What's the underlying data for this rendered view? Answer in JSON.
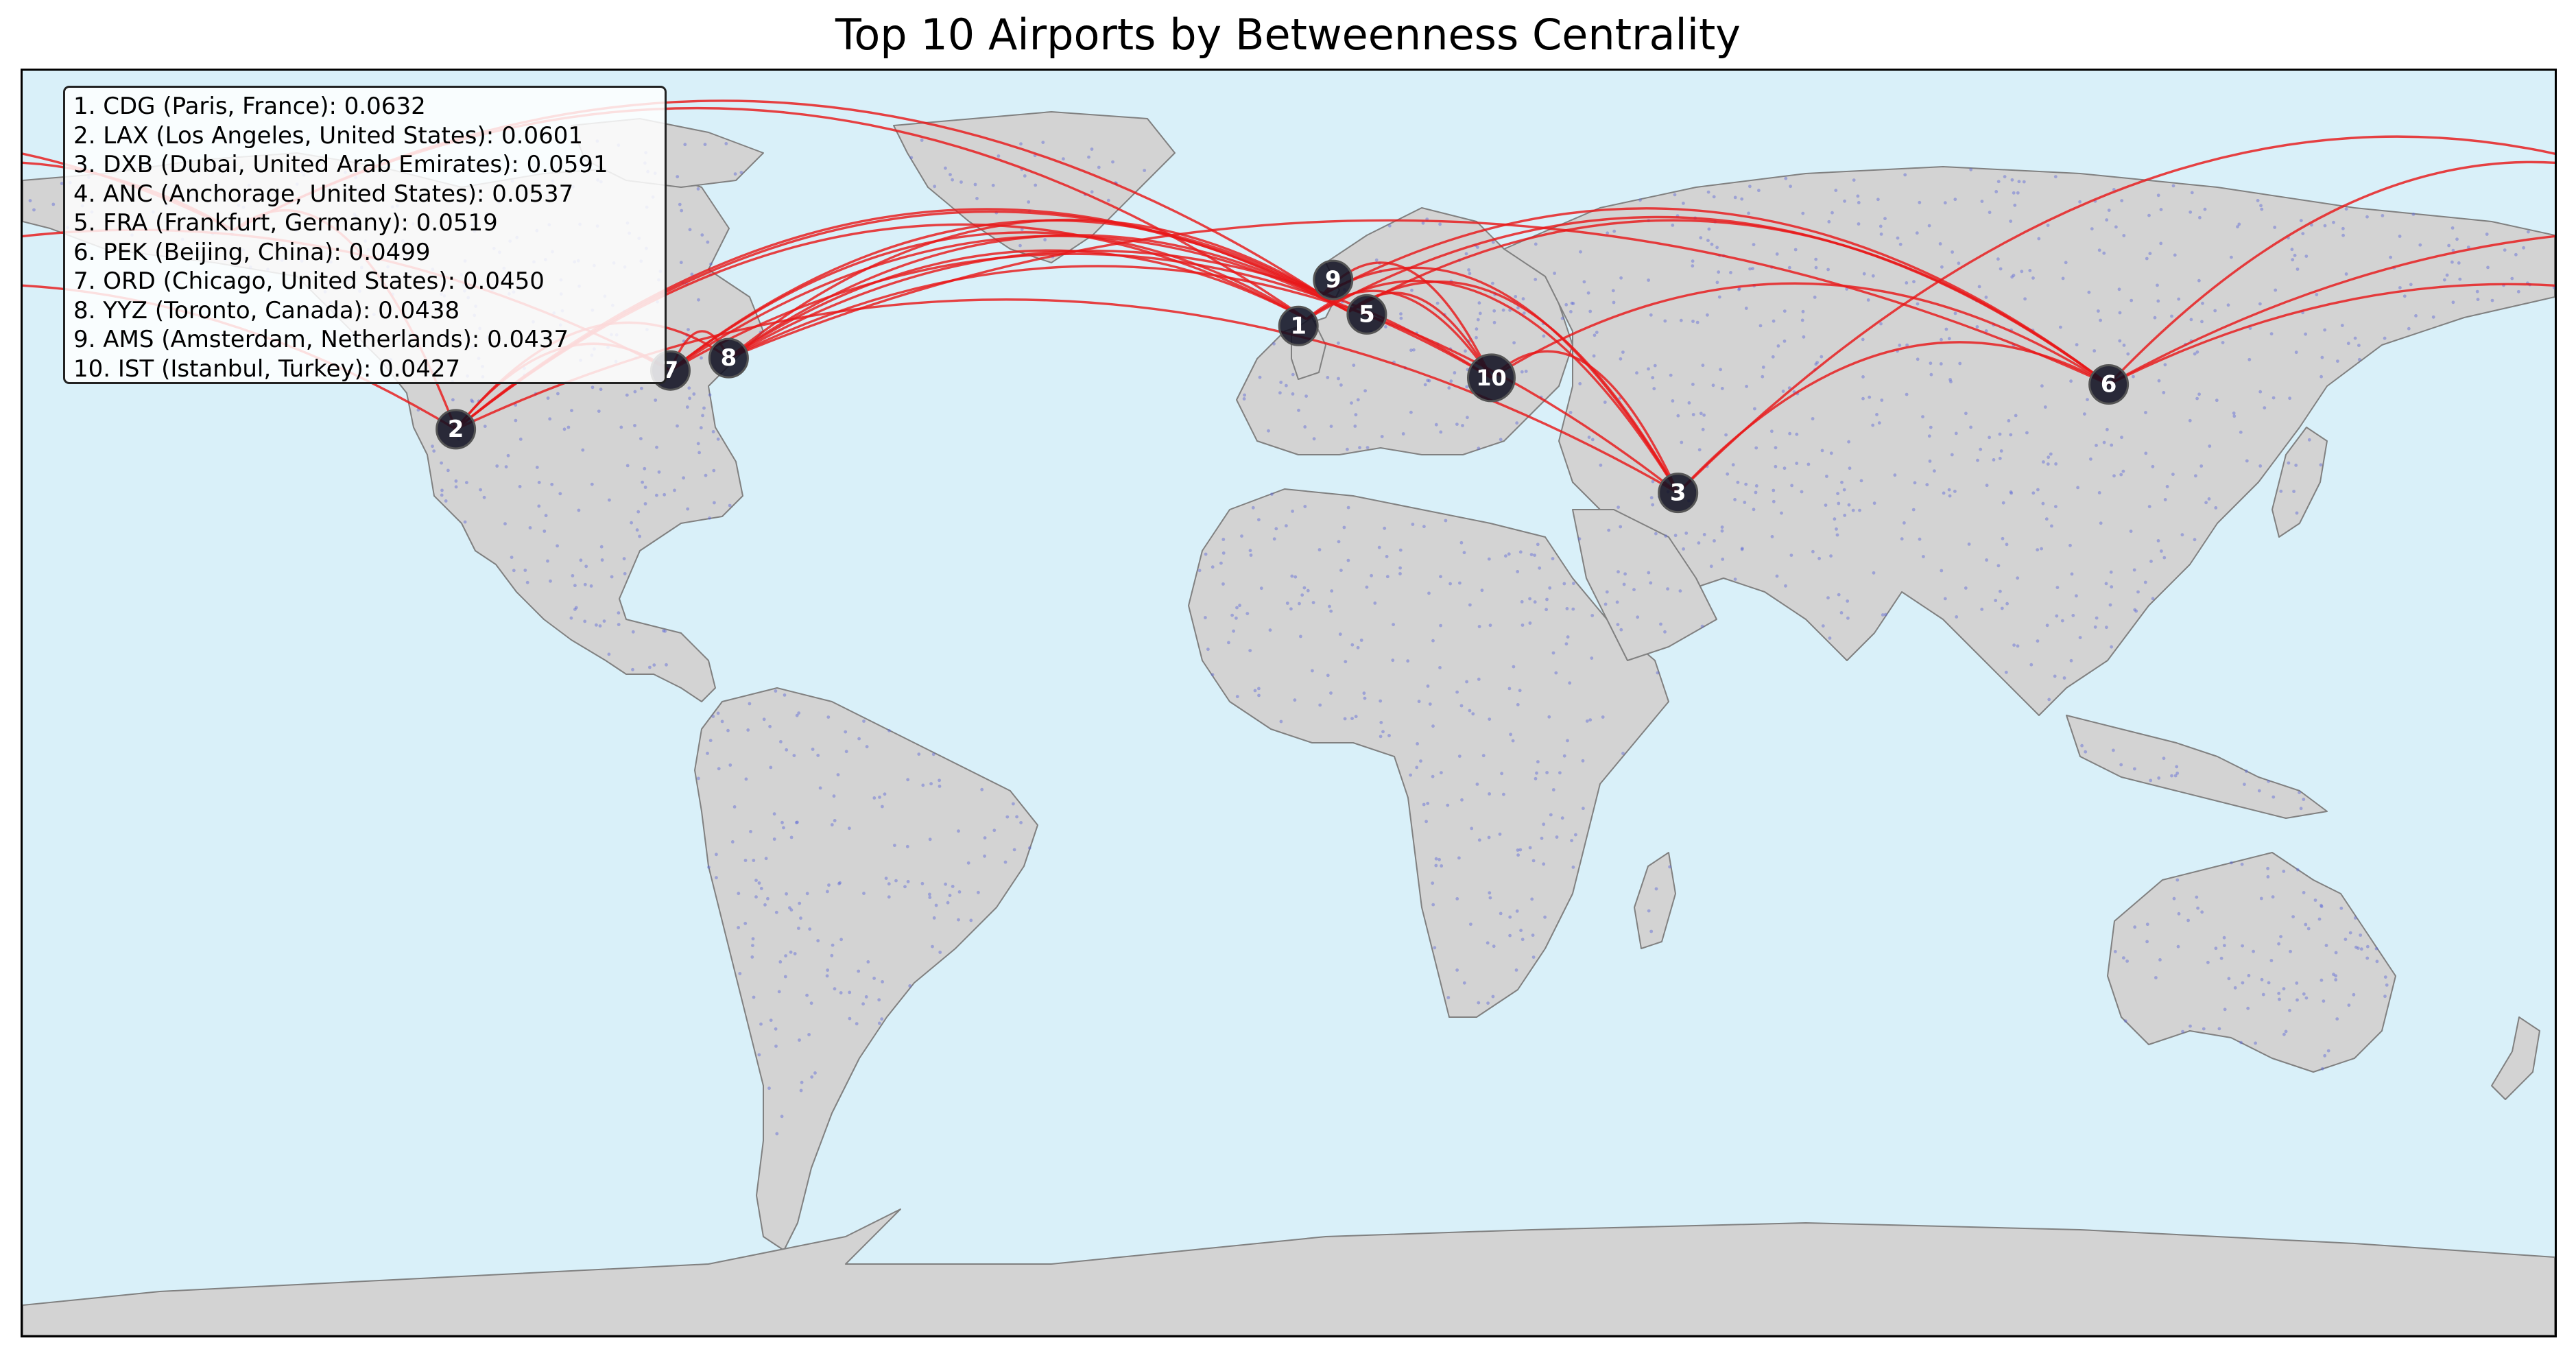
{
  "title": "Top 10 Airports by Betweenness Centrality",
  "colors": {
    "ocean": "#d9f0f9",
    "land": "#d3d3d3",
    "border": "#808080",
    "route": "#e8191a",
    "hub_fill": "#111122",
    "airport_dot": "#5a67d8"
  },
  "airports": [
    {
      "rank": 1,
      "code": "CDG",
      "city": "Paris",
      "country": "France",
      "score": "0.0632",
      "lon": 2.55,
      "lat": 49.01
    },
    {
      "rank": 2,
      "code": "LAX",
      "city": "Los Angeles",
      "country": "United States",
      "score": "0.0601",
      "lon": -118.41,
      "lat": 33.94
    },
    {
      "rank": 3,
      "code": "DXB",
      "city": "Dubai",
      "country": "United Arab Emirates",
      "score": "0.0591",
      "lon": 55.36,
      "lat": 25.25
    },
    {
      "rank": 4,
      "code": "ANC",
      "city": "Anchorage",
      "country": "United States",
      "score": "0.0537",
      "lon": -149.99,
      "lat": 61.17
    },
    {
      "rank": 5,
      "code": "FRA",
      "city": "Frankfurt",
      "country": "Germany",
      "score": "0.0519",
      "lon": 8.57,
      "lat": 50.03
    },
    {
      "rank": 6,
      "code": "PEK",
      "city": "Beijing",
      "country": "China",
      "score": "0.0499",
      "lon": 116.58,
      "lat": 40.08
    },
    {
      "rank": 7,
      "code": "ORD",
      "city": "Chicago",
      "country": "United States",
      "score": "0.0450",
      "lon": -87.9,
      "lat": 41.98
    },
    {
      "rank": 8,
      "code": "YYZ",
      "city": "Toronto",
      "country": "Canada",
      "score": "0.0438",
      "lon": -79.63,
      "lat": 43.68
    },
    {
      "rank": 9,
      "code": "AMS",
      "city": "Amsterdam",
      "country": "Netherlands",
      "score": "0.0437",
      "lon": 4.76,
      "lat": 52.31
    },
    {
      "rank": 10,
      "code": "IST",
      "city": "Istanbul",
      "country": "Turkey",
      "score": "0.0427",
      "lon": 28.81,
      "lat": 40.98
    }
  ],
  "legend": {
    "lines": [
      "1. CDG (Paris, France): 0.0632",
      "2. LAX (Los Angeles, United States): 0.0601",
      "3. DXB (Dubai, United Arab Emirates): 0.0591",
      "4. ANC (Anchorage, United States): 0.0537",
      "5. FRA (Frankfurt, Germany): 0.0519",
      "6. PEK (Beijing, China): 0.0499",
      "7. ORD (Chicago, United States): 0.0450",
      "8. YYZ (Toronto, Canada): 0.0438",
      "9. AMS (Amsterdam, Netherlands): 0.0437",
      "10. IST (Istanbul, Turkey): 0.0427"
    ]
  },
  "routes": [
    [
      2,
      7
    ],
    [
      2,
      8
    ],
    [
      2,
      1
    ],
    [
      2,
      5
    ],
    [
      2,
      9
    ],
    [
      2,
      4
    ],
    [
      2,
      3
    ],
    [
      7,
      1
    ],
    [
      7,
      5
    ],
    [
      7,
      9
    ],
    [
      7,
      8
    ],
    [
      7,
      10
    ],
    [
      8,
      1
    ],
    [
      8,
      5
    ],
    [
      8,
      9
    ],
    [
      8,
      10
    ],
    [
      8,
      3
    ],
    [
      1,
      10
    ],
    [
      1,
      3
    ],
    [
      1,
      6
    ],
    [
      5,
      10
    ],
    [
      5,
      3
    ],
    [
      5,
      6
    ],
    [
      9,
      10
    ],
    [
      9,
      3
    ],
    [
      9,
      6
    ],
    [
      10,
      3
    ],
    [
      10,
      6
    ],
    [
      3,
      6
    ],
    [
      3,
      4
    ],
    [
      6,
      4
    ],
    [
      6,
      7
    ],
    [
      6,
      2
    ],
    [
      6,
      8
    ],
    [
      1,
      4
    ],
    [
      9,
      4
    ]
  ]
}
